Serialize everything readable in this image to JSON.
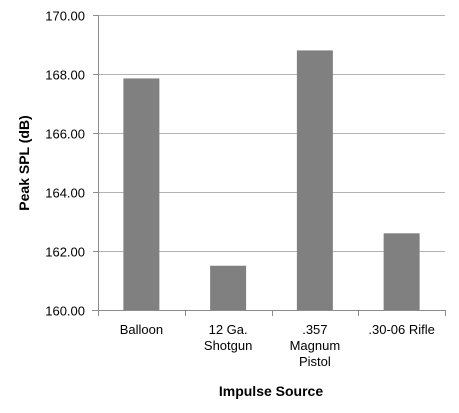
{
  "chart_data": {
    "type": "bar",
    "categories": [
      [
        "Balloon"
      ],
      [
        "12 Ga.",
        "Shotgun"
      ],
      [
        ".357",
        "Magnum",
        "Pistol"
      ],
      [
        ".30-06 Rifle"
      ]
    ],
    "values": [
      167.85,
      161.5,
      168.8,
      162.6
    ],
    "ylim": [
      160,
      170
    ],
    "yticks": [
      "160.00",
      "162.00",
      "164.00",
      "166.00",
      "168.00",
      "170.00"
    ],
    "ytick_values": [
      160,
      162,
      164,
      166,
      168,
      170
    ],
    "ylabel": "Peak SPL (dB)",
    "xlabel": "Impulse Source",
    "grid": true,
    "colors": {
      "bar": "#808080",
      "grid": "#b3b3b3",
      "axis": "#8c8c8c"
    }
  }
}
